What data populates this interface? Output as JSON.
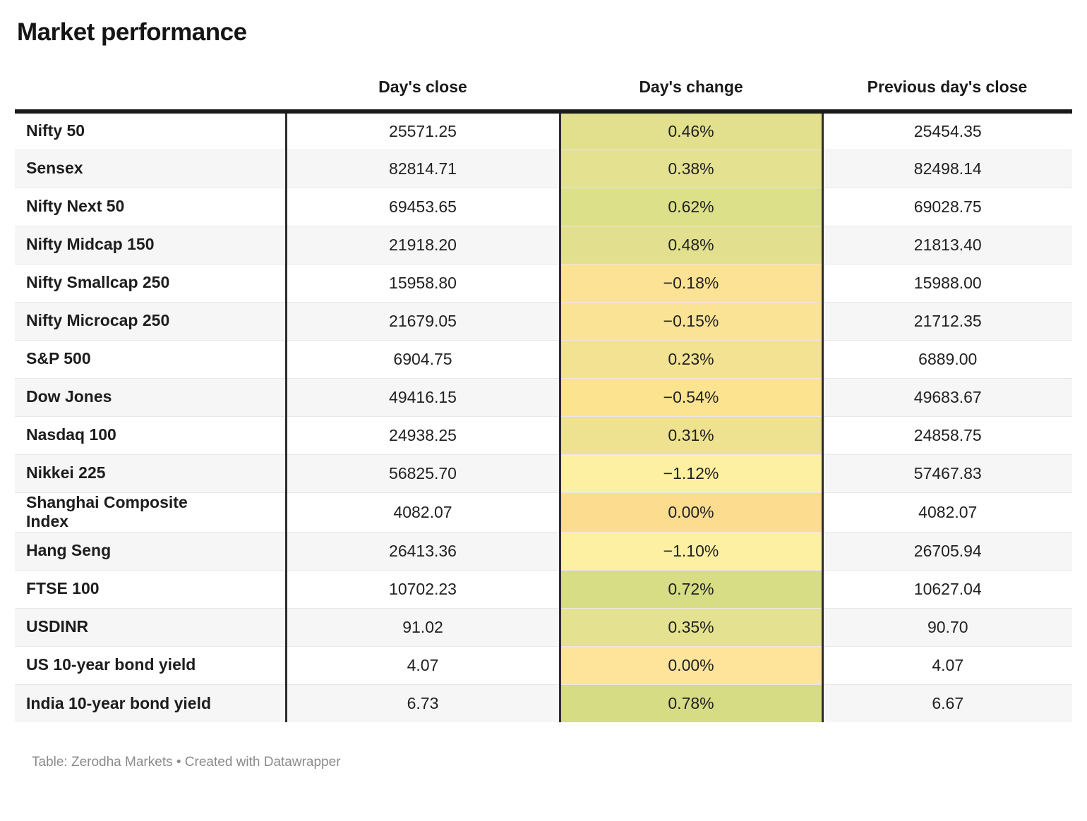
{
  "page": {
    "title": "Market performance",
    "footer": "Table: Zerodha Markets • Created with Datawrapper"
  },
  "table": {
    "columns": [
      "",
      "Day's close",
      "Day's change",
      "Previous day's close"
    ],
    "rows": [
      {
        "label": "Nifty 50",
        "close": "25571.25",
        "change": "0.46%",
        "prev": "25454.35",
        "change_bg": "#e2df8d"
      },
      {
        "label": "Sensex",
        "close": "82814.71",
        "change": "0.38%",
        "prev": "82498.14",
        "change_bg": "#e4e191"
      },
      {
        "label": "Nifty Next 50",
        "close": "69453.65",
        "change": "0.62%",
        "prev": "69028.75",
        "change_bg": "#dbe089"
      },
      {
        "label": "Nifty Midcap 150",
        "close": "21918.20",
        "change": "0.48%",
        "prev": "21813.40",
        "change_bg": "#e2e08e"
      },
      {
        "label": "Nifty Smallcap 250",
        "close": "15958.80",
        "change": "−0.18%",
        "prev": "15988.00",
        "change_bg": "#fbe294"
      },
      {
        "label": "Nifty Microcap 250",
        "close": "21679.05",
        "change": "−0.15%",
        "prev": "21712.35",
        "change_bg": "#fae395"
      },
      {
        "label": "S&P 500",
        "close": "6904.75",
        "change": "0.23%",
        "prev": "6889.00",
        "change_bg": "#f2e292"
      },
      {
        "label": "Dow Jones",
        "close": "49416.15",
        "change": "−0.54%",
        "prev": "49683.67",
        "change_bg": "#fbe390"
      },
      {
        "label": "Nasdaq 100",
        "close": "24938.25",
        "change": "0.31%",
        "prev": "24858.75",
        "change_bg": "#eee190"
      },
      {
        "label": "Nikkei 225",
        "close": "56825.70",
        "change": "−1.12%",
        "prev": "57467.83",
        "change_bg": "#fdf0a2"
      },
      {
        "label": "Shanghai Composite\nIndex",
        "close": "4082.07",
        "change": "0.00%",
        "prev": "4082.07",
        "change_bg": "#fcdd90"
      },
      {
        "label": "Hang Seng",
        "close": "26413.36",
        "change": "−1.10%",
        "prev": "26705.94",
        "change_bg": "#fdf0a2"
      },
      {
        "label": "FTSE 100",
        "close": "10702.23",
        "change": "0.72%",
        "prev": "10627.04",
        "change_bg": "#d6dd85"
      },
      {
        "label": "USDINR",
        "close": "91.02",
        "change": "0.35%",
        "prev": "90.70",
        "change_bg": "#e4e190"
      },
      {
        "label": "US 10-year bond yield",
        "close": "4.07",
        "change": "0.00%",
        "prev": "4.07",
        "change_bg": "#fde49a"
      },
      {
        "label": "India 10-year bond yield",
        "close": "6.73",
        "change": "0.78%",
        "prev": "6.67",
        "change_bg": "#d5dc84"
      }
    ]
  },
  "colors": {
    "header_border": "#1a1a1a",
    "column_divider": "#2d2d2d",
    "row_divider": "#e8e8e8",
    "alt_row_bg": "#f6f6f6",
    "footer_text": "#8b8b8b"
  }
}
